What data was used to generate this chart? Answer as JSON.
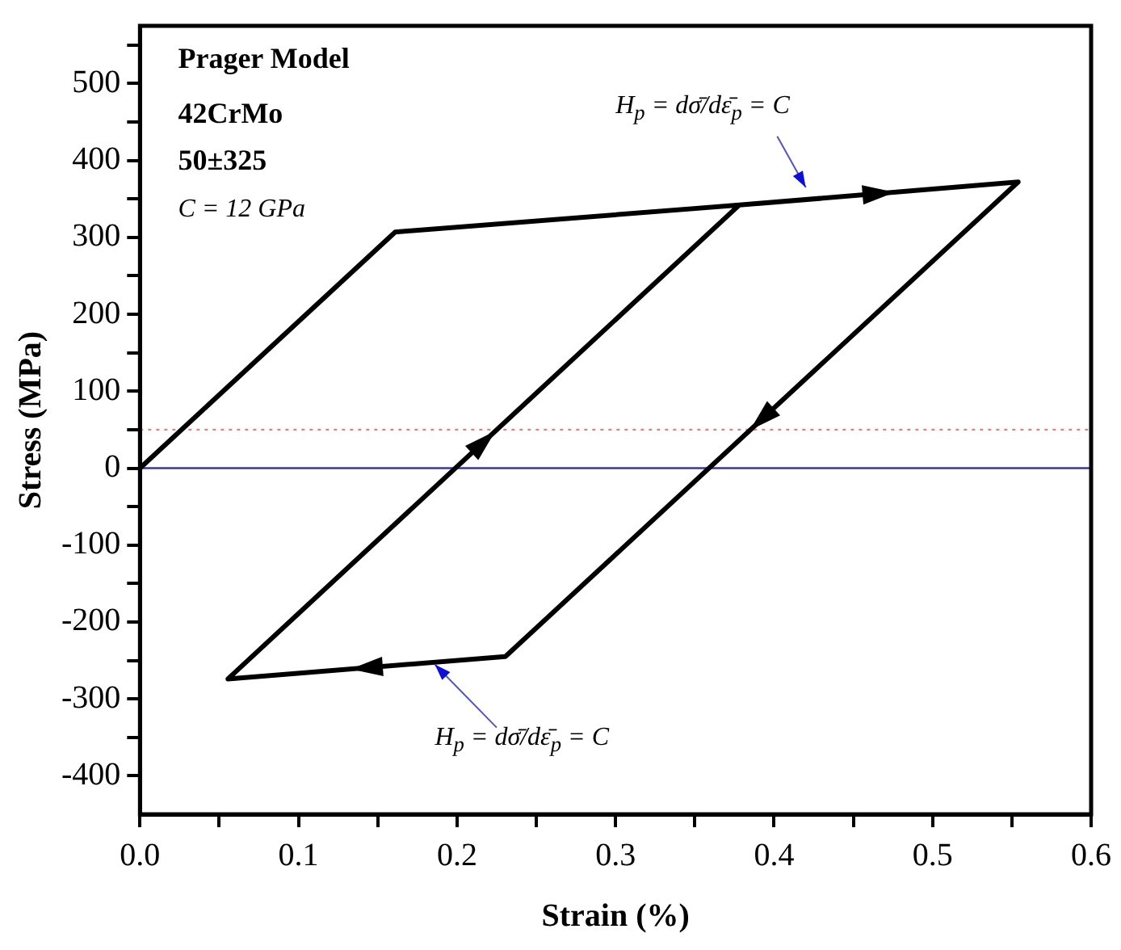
{
  "chart_data": {
    "type": "line",
    "xlabel": "Strain (%)",
    "ylabel": "Stress (MPa)",
    "annotations": [
      "Prager Model",
      "42CrMo",
      "50±325",
      "C = 12 GPa",
      "H$_{p}$ = dσ̄/dε̄$_{p}$ = C",
      "H$_{p}$ = dσ̄/dε̄$_{p}$ = C"
    ],
    "series": [
      {
        "color": "#000000",
        "x": [
          0,
          0.161,
          0.378,
          0.554,
          0.2305,
          0.0555,
          0.378
        ],
        "values": [
          0,
          307,
          342,
          372,
          -245,
          -274,
          342
        ]
      }
    ],
    "xlim": [
      0,
      0.6
    ],
    "ylim": [
      -450,
      575
    ],
    "xticks": [
      {
        "value": 0,
        "label": "0.0"
      },
      {
        "value": 0.05,
        "label": null
      },
      0.1,
      {
        "value": 0.15,
        "label": null
      },
      0.2,
      {
        "value": 0.25,
        "label": null
      },
      0.3,
      {
        "value": 0.35,
        "label": null
      },
      0.4,
      {
        "value": 0.45,
        "label": null
      },
      0.5,
      {
        "value": 0.55,
        "label": null
      },
      0.6
    ],
    "yticks": [
      -400,
      {
        "value": -350,
        "label": null
      },
      -300,
      {
        "value": -250,
        "label": null
      },
      -200,
      {
        "value": -150,
        "label": null
      },
      -100,
      {
        "value": -50,
        "label": null
      },
      0,
      {
        "value": 50,
        "label": null
      },
      100,
      {
        "value": 150,
        "label": null
      },
      200,
      {
        "value": 250,
        "label": null
      },
      300,
      {
        "value": 350,
        "label": null
      },
      400,
      {
        "value": 450,
        "label": null
      },
      500,
      {
        "value": 550,
        "label": null
      }
    ],
    "ref_lines": [
      {
        "axis": "y",
        "value": 50,
        "color": "#d08a80",
        "line_style": "dotted"
      },
      {
        "axis": "y",
        "value": 0,
        "color": "#3a3a8c",
        "line_style": "solid"
      }
    ],
    "grid": false,
    "legend": false,
    "marker": "none",
    "line_style": "solid"
  }
}
